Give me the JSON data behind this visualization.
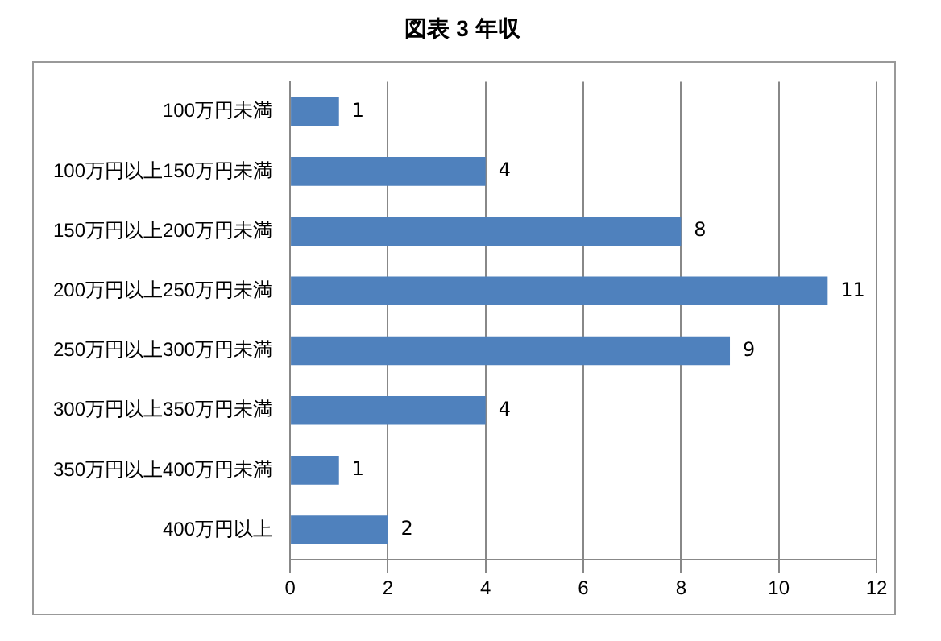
{
  "chart_data": {
    "type": "bar",
    "orientation": "horizontal",
    "title": "図表 3 年収",
    "categories": [
      "100万円未満",
      "100万円以上150万円未満",
      "150万円以上200万円未満",
      "200万円以上250万円未満",
      "250万円以上300万円未満",
      "300万円以上350万円未満",
      "350万円以上400万円未満",
      "400万円以上"
    ],
    "values": [
      1,
      4,
      8,
      11,
      9,
      4,
      1,
      2
    ],
    "color": "#4f81bd",
    "xlim": [
      0,
      12
    ],
    "xticks": [
      0,
      2,
      4,
      6,
      8,
      10,
      12
    ],
    "grid": "x",
    "data_labels": true,
    "legend": false
  }
}
